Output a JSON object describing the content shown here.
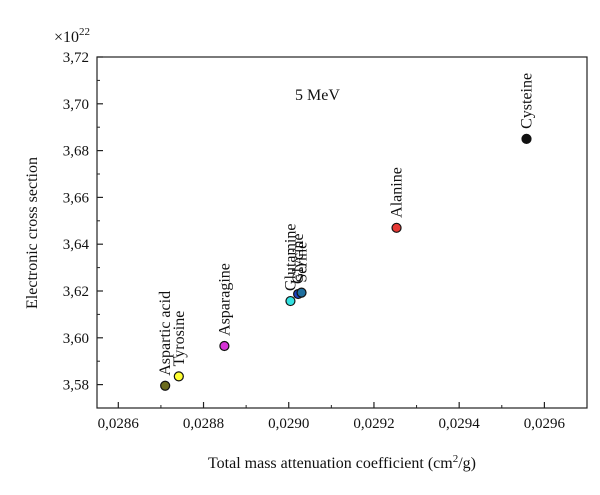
{
  "chart_data": {
    "type": "scatter",
    "title": "",
    "annotation": "5 MeV",
    "xlabel": "Total mass attenuation coefficient (cm",
    "xlabel_sup": "2",
    "xlabel_suffix": "/g)",
    "ylabel": "Electronic cross section",
    "y_multiplier": "×10",
    "y_multiplier_exp": "22",
    "xlim": [
      0.02855,
      0.0297
    ],
    "ylim": [
      3.57,
      3.72
    ],
    "x_ticks": [
      0.0286,
      0.0288,
      0.029,
      0.0292,
      0.0294,
      0.0296
    ],
    "x_tick_labels": [
      "0,0286",
      "0,0288",
      "0,0290",
      "0,0292",
      "0,0294",
      "0,0296"
    ],
    "y_ticks": [
      3.58,
      3.6,
      3.62,
      3.64,
      3.66,
      3.68,
      3.7,
      3.72
    ],
    "y_tick_labels": [
      "3,58",
      "3,60",
      "3,62",
      "3,64",
      "3,66",
      "3,68",
      "3,70",
      "3,72"
    ],
    "grid": false,
    "points": [
      {
        "label": "Aspartic acid",
        "x": 0.02871,
        "y": 3.5795,
        "color": "#6b6b1e"
      },
      {
        "label": "Tyrosine",
        "x": 0.028742,
        "y": 3.5835,
        "color": "#ffff33"
      },
      {
        "label": "Asparagine",
        "x": 0.028849,
        "y": 3.5965,
        "color": "#d633d6"
      },
      {
        "label": "Glutamine",
        "x": 0.029004,
        "y": 3.6157,
        "color": "#33e0e0"
      },
      {
        "label": "Glycine",
        "x": 0.029022,
        "y": 3.6187,
        "color": "#1a3fbf"
      },
      {
        "label": "Serine",
        "x": 0.02903,
        "y": 3.6193,
        "color": "#1f6f9f"
      },
      {
        "label": "Alanine",
        "x": 0.029253,
        "y": 3.647,
        "color": "#e53935"
      },
      {
        "label": "Cysteine",
        "x": 0.029558,
        "y": 3.685,
        "color": "#111111"
      }
    ]
  }
}
